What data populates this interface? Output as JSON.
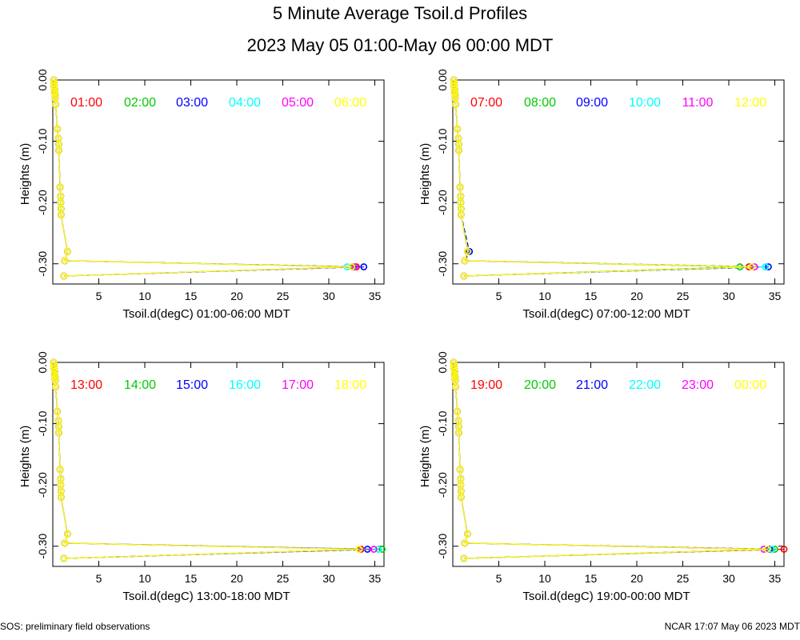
{
  "title": "5 Minute Average Tsoil.d Profiles",
  "subtitle": "2023 May 05 01:00-May 06 00:00 MDT",
  "footer_left": "SOS: preliminary field observations",
  "footer_right": "NCAR 17:07 May 06 2023 MDT",
  "colors": [
    "#ff0000",
    "#00cc00",
    "#0000ff",
    "#00ffff",
    "#ff00ff",
    "#ffff00"
  ],
  "chart_data": [
    {
      "type": "line",
      "xlabel": "Tsoil.d(degC) 01:00-06:00 MDT",
      "ylabel": "Heights (m)",
      "xlim": [
        0,
        36
      ],
      "ylim": [
        -0.333,
        0.0
      ],
      "xticks": [
        5,
        10,
        15,
        20,
        25,
        30,
        35
      ],
      "yticks": [
        0.0,
        -0.1,
        -0.2,
        -0.3
      ],
      "yticklabels": [
        "0.00",
        "-0.10",
        "-0.20",
        "-0.30"
      ],
      "heights": [
        0.0,
        -0.005,
        -0.01,
        -0.015,
        -0.02,
        -0.025,
        -0.03,
        -0.04,
        -0.08,
        -0.095,
        -0.105,
        -0.115,
        -0.175,
        -0.19,
        -0.2,
        -0.21,
        -0.22,
        -0.28,
        -0.295,
        -0.305,
        -0.32
      ],
      "series": [
        {
          "name": "01:00",
          "values": [
            0.1,
            0.15,
            0.15,
            0.2,
            0.2,
            0.25,
            0.25,
            0.3,
            0.5,
            0.6,
            0.65,
            0.65,
            0.8,
            0.85,
            0.85,
            0.9,
            0.9,
            1.6,
            1.3,
            33.0,
            1.2
          ]
        },
        {
          "name": "02:00",
          "values": [
            0.1,
            0.15,
            0.15,
            0.2,
            0.2,
            0.25,
            0.25,
            0.3,
            0.5,
            0.6,
            0.65,
            0.65,
            0.8,
            0.85,
            0.85,
            0.9,
            0.9,
            1.6,
            1.3,
            32.6,
            1.2
          ]
        },
        {
          "name": "03:00",
          "values": [
            0.1,
            0.15,
            0.15,
            0.2,
            0.2,
            0.25,
            0.25,
            0.3,
            0.5,
            0.6,
            0.65,
            0.65,
            0.8,
            0.85,
            0.85,
            0.9,
            0.9,
            1.6,
            1.3,
            33.8,
            1.2
          ]
        },
        {
          "name": "04:00",
          "values": [
            0.1,
            0.15,
            0.15,
            0.2,
            0.2,
            0.25,
            0.25,
            0.3,
            0.5,
            0.6,
            0.65,
            0.65,
            0.8,
            0.85,
            0.85,
            0.9,
            0.9,
            1.6,
            1.3,
            32.0,
            1.2
          ]
        },
        {
          "name": "05:00",
          "values": [
            0.1,
            0.15,
            0.15,
            0.2,
            0.2,
            0.25,
            0.25,
            0.3,
            0.5,
            0.6,
            0.65,
            0.65,
            0.8,
            0.85,
            0.85,
            0.9,
            0.9,
            1.6,
            1.3,
            32.8,
            1.2
          ]
        },
        {
          "name": "06:00",
          "values": [
            0.1,
            0.15,
            0.15,
            0.2,
            0.2,
            0.25,
            0.25,
            0.3,
            0.5,
            0.6,
            0.65,
            0.65,
            0.8,
            0.85,
            0.85,
            0.9,
            0.9,
            1.6,
            1.3,
            32.5,
            1.2
          ]
        }
      ]
    },
    {
      "type": "line",
      "xlabel": "Tsoil.d(degC) 07:00-12:00 MDT",
      "ylabel": "Heights (m)",
      "xlim": [
        0,
        36
      ],
      "ylim": [
        -0.333,
        0.0
      ],
      "xticks": [
        5,
        10,
        15,
        20,
        25,
        30,
        35
      ],
      "yticks": [
        0.0,
        -0.1,
        -0.2,
        -0.3
      ],
      "yticklabels": [
        "0.00",
        "-0.10",
        "-0.20",
        "-0.30"
      ],
      "heights": [
        0.0,
        -0.005,
        -0.01,
        -0.015,
        -0.02,
        -0.025,
        -0.03,
        -0.04,
        -0.08,
        -0.095,
        -0.105,
        -0.115,
        -0.175,
        -0.19,
        -0.2,
        -0.21,
        -0.22,
        -0.28,
        -0.295,
        -0.305,
        -0.32
      ],
      "series": [
        {
          "name": "07:00",
          "values": [
            0.1,
            0.15,
            0.15,
            0.2,
            0.2,
            0.25,
            0.25,
            0.3,
            0.5,
            0.6,
            0.65,
            0.65,
            0.8,
            0.85,
            0.85,
            0.9,
            0.9,
            1.6,
            1.3,
            32.2,
            1.2
          ]
        },
        {
          "name": "08:00",
          "values": [
            0.1,
            0.15,
            0.15,
            0.2,
            0.2,
            0.25,
            0.25,
            0.3,
            0.5,
            0.6,
            0.65,
            0.65,
            0.8,
            0.85,
            0.85,
            0.9,
            0.9,
            1.8,
            1.3,
            31.2,
            1.2
          ]
        },
        {
          "name": "09:00",
          "values": [
            0.1,
            0.15,
            0.15,
            0.2,
            0.2,
            0.25,
            0.25,
            0.3,
            0.5,
            0.6,
            0.65,
            0.65,
            0.8,
            0.85,
            0.85,
            0.9,
            0.9,
            1.8,
            1.3,
            34.3,
            1.2
          ]
        },
        {
          "name": "10:00",
          "values": [
            0.1,
            0.15,
            0.15,
            0.2,
            0.2,
            0.25,
            0.25,
            0.3,
            0.5,
            0.6,
            0.65,
            0.65,
            0.8,
            0.85,
            0.85,
            0.9,
            0.9,
            1.6,
            1.3,
            34.0,
            1.2
          ]
        },
        {
          "name": "11:00",
          "values": [
            0.1,
            0.15,
            0.15,
            0.2,
            0.2,
            0.25,
            0.25,
            0.3,
            0.5,
            0.6,
            0.65,
            0.65,
            0.8,
            0.85,
            0.85,
            0.9,
            0.9,
            1.6,
            1.3,
            32.8,
            1.2
          ]
        },
        {
          "name": "12:00",
          "values": [
            0.1,
            0.15,
            0.15,
            0.2,
            0.2,
            0.25,
            0.25,
            0.3,
            0.5,
            0.6,
            0.65,
            0.65,
            0.8,
            0.85,
            0.85,
            0.9,
            0.9,
            1.6,
            1.3,
            32.5,
            1.2
          ]
        }
      ]
    },
    {
      "type": "line",
      "xlabel": "Tsoil.d(degC) 13:00-18:00 MDT",
      "ylabel": "Heights (m)",
      "xlim": [
        0,
        36
      ],
      "ylim": [
        -0.333,
        0.0
      ],
      "xticks": [
        5,
        10,
        15,
        20,
        25,
        30,
        35
      ],
      "yticks": [
        0.0,
        -0.1,
        -0.2,
        -0.3
      ],
      "yticklabels": [
        "0.00",
        "-0.10",
        "-0.20",
        "-0.30"
      ],
      "heights": [
        0.0,
        -0.005,
        -0.01,
        -0.015,
        -0.02,
        -0.025,
        -0.03,
        -0.04,
        -0.08,
        -0.095,
        -0.105,
        -0.115,
        -0.175,
        -0.19,
        -0.2,
        -0.21,
        -0.22,
        -0.28,
        -0.295,
        -0.305,
        -0.32
      ],
      "series": [
        {
          "name": "13:00",
          "values": [
            0.1,
            0.15,
            0.15,
            0.2,
            0.2,
            0.25,
            0.25,
            0.3,
            0.5,
            0.6,
            0.65,
            0.65,
            0.8,
            0.85,
            0.85,
            0.9,
            0.9,
            1.6,
            1.3,
            33.5,
            1.2
          ]
        },
        {
          "name": "14:00",
          "values": [
            0.1,
            0.15,
            0.15,
            0.2,
            0.2,
            0.25,
            0.25,
            0.3,
            0.5,
            0.6,
            0.65,
            0.65,
            0.8,
            0.85,
            0.85,
            0.9,
            0.9,
            1.6,
            1.3,
            35.8,
            1.2
          ]
        },
        {
          "name": "15:00",
          "values": [
            0.1,
            0.15,
            0.15,
            0.2,
            0.2,
            0.25,
            0.25,
            0.3,
            0.5,
            0.6,
            0.65,
            0.65,
            0.8,
            0.85,
            0.85,
            0.9,
            0.9,
            1.6,
            1.3,
            34.2,
            1.2
          ]
        },
        {
          "name": "16:00",
          "values": [
            0.1,
            0.15,
            0.15,
            0.2,
            0.2,
            0.25,
            0.25,
            0.3,
            0.5,
            0.6,
            0.65,
            0.65,
            0.8,
            0.85,
            0.85,
            0.9,
            0.9,
            1.6,
            1.3,
            35.4,
            1.2
          ]
        },
        {
          "name": "17:00",
          "values": [
            0.1,
            0.15,
            0.15,
            0.2,
            0.2,
            0.25,
            0.25,
            0.3,
            0.5,
            0.6,
            0.65,
            0.65,
            0.8,
            0.85,
            0.85,
            0.9,
            0.9,
            1.6,
            1.3,
            34.9,
            1.2
          ]
        },
        {
          "name": "18:00",
          "values": [
            0.1,
            0.15,
            0.15,
            0.2,
            0.2,
            0.25,
            0.25,
            0.3,
            0.5,
            0.6,
            0.65,
            0.65,
            0.8,
            0.85,
            0.85,
            0.9,
            0.9,
            1.6,
            1.3,
            33.3,
            1.2
          ]
        }
      ]
    },
    {
      "type": "line",
      "xlabel": "Tsoil.d(degC) 19:00-00:00 MDT",
      "ylabel": "Heights (m)",
      "xlim": [
        0,
        36
      ],
      "ylim": [
        -0.333,
        0.0
      ],
      "xticks": [
        5,
        10,
        15,
        20,
        25,
        30,
        35
      ],
      "yticks": [
        0.0,
        -0.1,
        -0.2,
        -0.3
      ],
      "yticklabels": [
        "0.00",
        "-0.10",
        "-0.20",
        "-0.30"
      ],
      "heights": [
        0.0,
        -0.005,
        -0.01,
        -0.015,
        -0.02,
        -0.025,
        -0.03,
        -0.04,
        -0.08,
        -0.095,
        -0.105,
        -0.115,
        -0.175,
        -0.19,
        -0.2,
        -0.21,
        -0.22,
        -0.28,
        -0.295,
        -0.305,
        -0.32
      ],
      "series": [
        {
          "name": "19:00",
          "values": [
            0.1,
            0.15,
            0.15,
            0.2,
            0.2,
            0.25,
            0.25,
            0.3,
            0.5,
            0.6,
            0.65,
            0.65,
            0.8,
            0.85,
            0.85,
            0.9,
            0.9,
            1.6,
            1.3,
            36.0,
            1.2
          ]
        },
        {
          "name": "20:00",
          "values": [
            0.1,
            0.15,
            0.15,
            0.2,
            0.2,
            0.25,
            0.25,
            0.3,
            0.5,
            0.6,
            0.65,
            0.65,
            0.8,
            0.85,
            0.85,
            0.9,
            0.9,
            1.6,
            1.3,
            35.0,
            1.2
          ]
        },
        {
          "name": "21:00",
          "values": [
            0.1,
            0.15,
            0.15,
            0.2,
            0.2,
            0.25,
            0.25,
            0.3,
            0.5,
            0.6,
            0.65,
            0.65,
            0.8,
            0.85,
            0.85,
            0.9,
            0.9,
            1.6,
            1.3,
            34.4,
            1.2
          ]
        },
        {
          "name": "22:00",
          "values": [
            0.1,
            0.15,
            0.15,
            0.2,
            0.2,
            0.25,
            0.25,
            0.3,
            0.5,
            0.6,
            0.65,
            0.65,
            0.8,
            0.85,
            0.85,
            0.9,
            0.9,
            1.6,
            1.3,
            34.7,
            1.2
          ]
        },
        {
          "name": "23:00",
          "values": [
            0.1,
            0.15,
            0.15,
            0.2,
            0.2,
            0.25,
            0.25,
            0.3,
            0.5,
            0.6,
            0.65,
            0.65,
            0.8,
            0.85,
            0.85,
            0.9,
            0.9,
            1.6,
            1.3,
            33.8,
            1.2
          ]
        },
        {
          "name": "00:00",
          "values": [
            0.1,
            0.15,
            0.15,
            0.2,
            0.2,
            0.25,
            0.25,
            0.3,
            0.5,
            0.6,
            0.65,
            0.65,
            0.8,
            0.85,
            0.85,
            0.9,
            0.9,
            1.6,
            1.3,
            34.2,
            1.2
          ]
        }
      ]
    }
  ]
}
